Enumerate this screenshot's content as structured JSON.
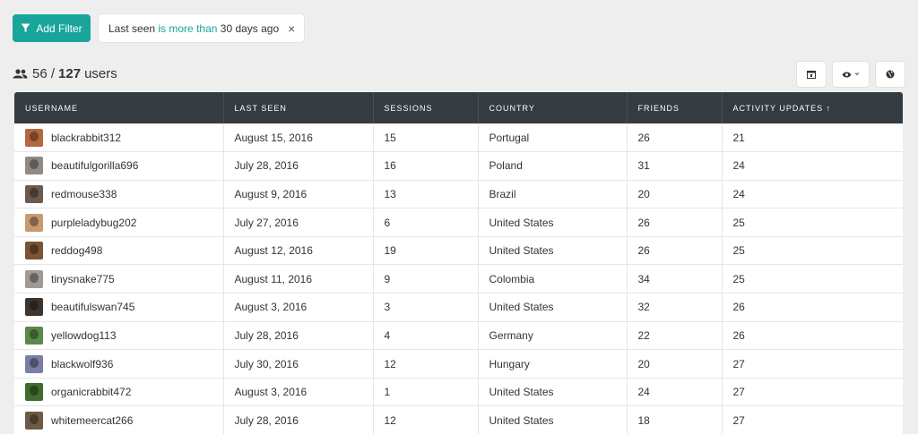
{
  "filter_bar": {
    "add_filter_label": "Add Filter",
    "chip": {
      "prefix": "Last seen ",
      "operator": "is more than",
      "suffix": " 30 days ago",
      "close": "×"
    }
  },
  "count": {
    "shown": "56",
    "separator": "/",
    "total": "127",
    "unit": "users"
  },
  "toolbar": {
    "icons": [
      "columns-icon",
      "eye-icon",
      "globe-icon"
    ]
  },
  "table": {
    "columns": [
      "USERNAME",
      "LAST SEEN",
      "SESSIONS",
      "COUNTRY",
      "FRIENDS",
      "ACTIVITY UPDATES ↑"
    ],
    "rows": [
      {
        "username": "blackrabbit312",
        "last_seen": "August 15, 2016",
        "sessions": "15",
        "country": "Portugal",
        "friends": "26",
        "activity": "21",
        "avatar_color": "#b5673f"
      },
      {
        "username": "beautifulgorilla696",
        "last_seen": "July 28, 2016",
        "sessions": "16",
        "country": "Poland",
        "friends": "31",
        "activity": "24",
        "avatar_color": "#8f8a86"
      },
      {
        "username": "redmouse338",
        "last_seen": "August 9, 2016",
        "sessions": "13",
        "country": "Brazil",
        "friends": "20",
        "activity": "24",
        "avatar_color": "#6e5a4c"
      },
      {
        "username": "purpleladybug202",
        "last_seen": "July 27, 2016",
        "sessions": "6",
        "country": "United States",
        "friends": "26",
        "activity": "25",
        "avatar_color": "#c99a70"
      },
      {
        "username": "reddog498",
        "last_seen": "August 12, 2016",
        "sessions": "19",
        "country": "United States",
        "friends": "26",
        "activity": "25",
        "avatar_color": "#7b5236"
      },
      {
        "username": "tinysnake775",
        "last_seen": "August 11, 2016",
        "sessions": "9",
        "country": "Colombia",
        "friends": "34",
        "activity": "25",
        "avatar_color": "#9f9a95"
      },
      {
        "username": "beautifulswan745",
        "last_seen": "August 3, 2016",
        "sessions": "3",
        "country": "United States",
        "friends": "32",
        "activity": "26",
        "avatar_color": "#3e342e"
      },
      {
        "username": "yellowdog113",
        "last_seen": "July 28, 2016",
        "sessions": "4",
        "country": "Germany",
        "friends": "22",
        "activity": "26",
        "avatar_color": "#5a8a4a"
      },
      {
        "username": "blackwolf936",
        "last_seen": "July 30, 2016",
        "sessions": "12",
        "country": "Hungary",
        "friends": "20",
        "activity": "27",
        "avatar_color": "#7a7da6"
      },
      {
        "username": "organicrabbit472",
        "last_seen": "August 3, 2016",
        "sessions": "1",
        "country": "United States",
        "friends": "24",
        "activity": "27",
        "avatar_color": "#3f6b2e"
      },
      {
        "username": "whitemeercat266",
        "last_seen": "July 28, 2016",
        "sessions": "12",
        "country": "United States",
        "friends": "18",
        "activity": "27",
        "avatar_color": "#6f5a45"
      }
    ]
  }
}
